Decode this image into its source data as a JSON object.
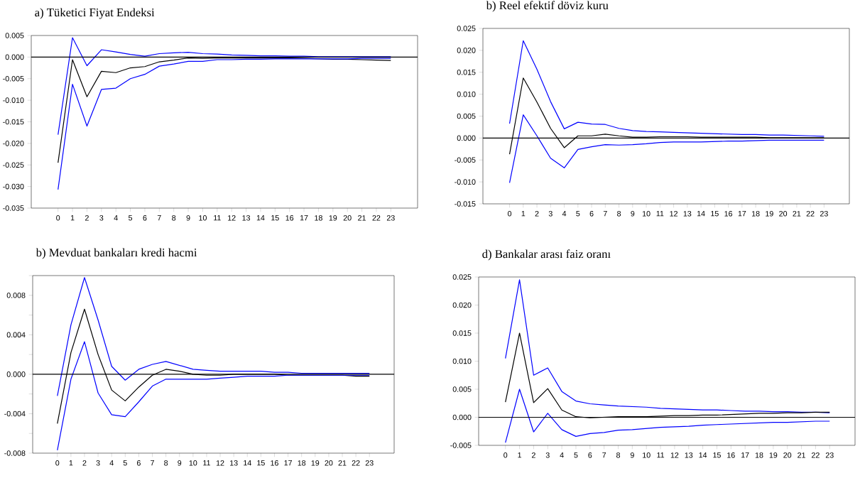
{
  "chart_data": [
    {
      "type": "line",
      "title": "a) Tüketici Fiyat Endeksi",
      "x": [
        0,
        1,
        2,
        3,
        4,
        5,
        6,
        7,
        8,
        9,
        10,
        11,
        12,
        13,
        14,
        15,
        16,
        17,
        18,
        19,
        20,
        21,
        22,
        23
      ],
      "xlim": [
        -1.85,
        24.85
      ],
      "xticks": [
        0,
        1,
        2,
        3,
        4,
        5,
        6,
        7,
        8,
        9,
        10,
        11,
        12,
        13,
        14,
        15,
        16,
        17,
        18,
        19,
        20,
        21,
        22,
        23
      ],
      "ylim": [
        -0.035,
        0.005
      ],
      "yticks": [
        {
          "value": -0.035,
          "label": "-0.035"
        },
        {
          "value": -0.03,
          "label": "-0.030"
        },
        {
          "value": -0.025,
          "label": "-0.025"
        },
        {
          "value": -0.02,
          "label": "-0.020"
        },
        {
          "value": -0.015,
          "label": "-0.015"
        },
        {
          "value": -0.01,
          "label": "-0.010"
        },
        {
          "value": -0.005,
          "label": "-0.005"
        },
        {
          "value": 0,
          "label": "0.000"
        },
        0.005
      ],
      "series": [
        {
          "color": "#0000ff",
          "values": [
            -0.018,
            0.0045,
            -0.002,
            0.0017,
            0.0012,
            0.0006,
            0.0002,
            0.0008,
            0.001,
            0.0011,
            0.0008,
            0.0007,
            0.0005,
            0.0004,
            0.0003,
            0.0003,
            0.0002,
            0.0002,
            0.0001,
            0.0001,
            0.0001,
            0.0001,
            0.0001,
            0.0001
          ]
        },
        {
          "color": "#000000",
          "values": [
            -0.0245,
            -0.0006,
            -0.0092,
            -0.0033,
            -0.0036,
            -0.0025,
            -0.0022,
            -0.0011,
            -0.0007,
            -0.0002,
            -0.0003,
            -0.0002,
            -0.0002,
            -0.0002,
            -0.0002,
            -0.0002,
            -0.0002,
            -0.0003,
            -0.0004,
            -0.0005,
            -0.0005,
            -0.0006,
            -0.0007,
            -0.0008
          ]
        },
        {
          "color": "#0000ff",
          "values": [
            -0.0307,
            -0.0063,
            -0.016,
            -0.0075,
            -0.0072,
            -0.005,
            -0.004,
            -0.0021,
            -0.0016,
            -0.001,
            -0.001,
            -0.0006,
            -0.0006,
            -0.0005,
            -0.0005,
            -0.0004,
            -0.0004,
            -0.0004,
            -0.0004,
            -0.0004,
            -0.0004,
            -0.0003,
            -0.0003,
            -0.0003
          ]
        }
      ],
      "ref_lines": [
        {
          "axis": "y",
          "value": 0,
          "color": "#000000"
        }
      ]
    },
    {
      "type": "line",
      "title": "b) Reel efektif döviz kuru",
      "x": [
        0,
        1,
        2,
        3,
        4,
        5,
        6,
        7,
        8,
        9,
        10,
        11,
        12,
        13,
        14,
        15,
        16,
        17,
        18,
        19,
        20,
        21,
        22,
        23
      ],
      "xlim": [
        -1.95,
        24.85
      ],
      "xticks": [
        0,
        1,
        2,
        3,
        4,
        5,
        6,
        7,
        8,
        9,
        10,
        11,
        12,
        13,
        14,
        15,
        16,
        17,
        18,
        19,
        20,
        21,
        22,
        23
      ],
      "ylim": [
        -0.015,
        0.025
      ],
      "yticks": [
        {
          "value": -0.015,
          "label": "-0.015"
        },
        {
          "value": -0.01,
          "label": "-0.010"
        },
        {
          "value": -0.005,
          "label": "-0.005"
        },
        {
          "value": 0,
          "label": "0.000"
        },
        0.005,
        {
          "value": 0.01,
          "label": "0.010"
        },
        0.015,
        {
          "value": 0.02,
          "label": "0.020"
        },
        0.025
      ],
      "series": [
        {
          "color": "#0000ff",
          "values": [
            0.0033,
            0.0222,
            0.0157,
            0.0083,
            0.0021,
            0.0036,
            0.0032,
            0.0031,
            0.0022,
            0.0017,
            0.0015,
            0.0014,
            0.0013,
            0.0012,
            0.0011,
            0.001,
            0.0009,
            0.0008,
            0.0008,
            0.0007,
            0.0007,
            0.0006,
            0.0005,
            0.0004
          ]
        },
        {
          "color": "#000000",
          "values": [
            -0.0037,
            0.0137,
            0.0082,
            0.0022,
            -0.0022,
            0.0005,
            0.0005,
            0.0009,
            0.0005,
            0.0002,
            0.0002,
            0.0003,
            0.0003,
            0.0003,
            0.0002,
            0.0002,
            0.0002,
            0.0002,
            0.0002,
            0.0001,
            0.0001,
            0.0001,
            0.0001,
            0.0001
          ]
        },
        {
          "color": "#0000ff",
          "values": [
            -0.0102,
            0.0053,
            0.0005,
            -0.0046,
            -0.0068,
            -0.0026,
            -0.002,
            -0.0015,
            -0.0016,
            -0.0015,
            -0.0013,
            -0.001,
            -0.0009,
            -0.0009,
            -0.0009,
            -0.0008,
            -0.0007,
            -0.0007,
            -0.0006,
            -0.0005,
            -0.0005,
            -0.0005,
            -0.0005,
            -0.0005
          ]
        }
      ],
      "ref_lines": [
        {
          "axis": "y",
          "value": 0,
          "color": "#000000"
        }
      ]
    },
    {
      "type": "line",
      "title": "b) Mevduat bankaları kredi hacmi",
      "x": [
        0,
        1,
        2,
        3,
        4,
        5,
        6,
        7,
        8,
        9,
        10,
        11,
        12,
        13,
        14,
        15,
        16,
        17,
        18,
        19,
        20,
        21,
        22,
        23
      ],
      "xlim": [
        -1.82,
        24.82
      ],
      "xticks": [
        0,
        1,
        2,
        3,
        4,
        5,
        6,
        7,
        8,
        9,
        10,
        11,
        12,
        13,
        14,
        15,
        16,
        17,
        18,
        19,
        20,
        21,
        22,
        23
      ],
      "ylim": [
        -0.008,
        0.01
      ],
      "yticks": [
        {
          "value": -0.008,
          "label": "-0.008"
        },
        {
          "value": -0.006,
          "label": null
        },
        {
          "value": -0.004,
          "label": "-0.004"
        },
        {
          "value": -0.002,
          "label": null
        },
        {
          "value": 0,
          "label": "0.000"
        },
        {
          "value": 0.002,
          "label": null
        },
        {
          "value": 0.004,
          "label": "0.004"
        },
        {
          "value": 0.006,
          "label": null
        },
        {
          "value": 0.008,
          "label": "0.008"
        },
        {
          "value": 0.01,
          "label": null
        }
      ],
      "series": [
        {
          "color": "#0000ff",
          "values": [
            -0.0022,
            0.005,
            0.0098,
            0.0055,
            0.0008,
            -0.0006,
            0.0005,
            0.001,
            0.0013,
            0.0009,
            0.0005,
            0.0004,
            0.0003,
            0.0003,
            0.0003,
            0.0003,
            0.0002,
            0.0002,
            0.0001,
            0.0001,
            0.0001,
            0.0001,
            0.0001,
            0.0001
          ]
        },
        {
          "color": "#000000",
          "values": [
            -0.005,
            0.0022,
            0.0066,
            0.002,
            -0.0016,
            -0.0027,
            -0.0013,
            -0.0001,
            0.0005,
            0.0003,
            0.0,
            -0.0001,
            -0.0001,
            0.0,
            0.0,
            0.0,
            0.0,
            -0.0001,
            -0.0001,
            -0.0001,
            -0.0001,
            -0.0001,
            -0.0002,
            -0.0002
          ]
        },
        {
          "color": "#0000ff",
          "values": [
            -0.0077,
            -0.0005,
            0.0033,
            -0.0019,
            -0.0041,
            -0.0043,
            -0.0028,
            -0.0012,
            -0.0005,
            -0.0005,
            -0.0005,
            -0.0005,
            -0.0004,
            -0.0003,
            -0.0002,
            -0.0002,
            -0.0002,
            -0.0001,
            -0.0001,
            -0.0001,
            -0.0001,
            -0.0001,
            -0.0001,
            -0.0001
          ]
        }
      ],
      "ref_lines": [
        {
          "axis": "y",
          "value": 0,
          "color": "#000000"
        }
      ]
    },
    {
      "type": "line",
      "title": "d) Bankalar arası faiz oranı",
      "x": [
        0,
        1,
        2,
        3,
        4,
        5,
        6,
        7,
        8,
        9,
        10,
        11,
        12,
        13,
        14,
        15,
        16,
        17,
        18,
        19,
        20,
        21,
        22,
        23
      ],
      "xlim": [
        -1.9,
        24.8
      ],
      "xticks": [
        0,
        1,
        2,
        3,
        4,
        5,
        6,
        7,
        8,
        9,
        10,
        11,
        12,
        13,
        14,
        15,
        16,
        17,
        18,
        19,
        20,
        21,
        22,
        23
      ],
      "ylim": [
        -0.005,
        0.025
      ],
      "yticks": [
        {
          "value": -0.005,
          "label": "-0.005"
        },
        {
          "value": 0,
          "label": "0.000"
        },
        0.005,
        {
          "value": 0.01,
          "label": "0.010"
        },
        0.015,
        {
          "value": 0.02,
          "label": "0.020"
        },
        0.025
      ],
      "series": [
        {
          "color": "#0000ff",
          "values": [
            0.0105,
            0.0245,
            0.0075,
            0.0088,
            0.0046,
            0.0029,
            0.0024,
            0.0022,
            0.002,
            0.0019,
            0.0018,
            0.0016,
            0.0015,
            0.0014,
            0.0013,
            0.0013,
            0.0012,
            0.0011,
            0.0011,
            0.001,
            0.001,
            0.0009,
            0.0009,
            0.0008
          ]
        },
        {
          "color": "#000000",
          "values": [
            0.0027,
            0.015,
            0.0026,
            0.0051,
            0.0013,
            0.0001,
            -0.0001,
            0.0,
            0.0001,
            0.0001,
            0.0001,
            0.0002,
            0.0003,
            0.0003,
            0.0004,
            0.0004,
            0.0005,
            0.0006,
            0.0007,
            0.0007,
            0.0008,
            0.0008,
            0.0009,
            0.0009
          ]
        },
        {
          "color": "#0000ff",
          "values": [
            -0.0045,
            0.005,
            -0.0026,
            0.0007,
            -0.0022,
            -0.0034,
            -0.0029,
            -0.0027,
            -0.0023,
            -0.0022,
            -0.002,
            -0.0018,
            -0.0017,
            -0.0016,
            -0.0014,
            -0.0013,
            -0.0012,
            -0.0011,
            -0.001,
            -0.0009,
            -0.0009,
            -0.0008,
            -0.0007,
            -0.0007
          ]
        }
      ],
      "ref_lines": [
        {
          "axis": "y",
          "value": 0,
          "color": "#000000"
        }
      ]
    }
  ]
}
